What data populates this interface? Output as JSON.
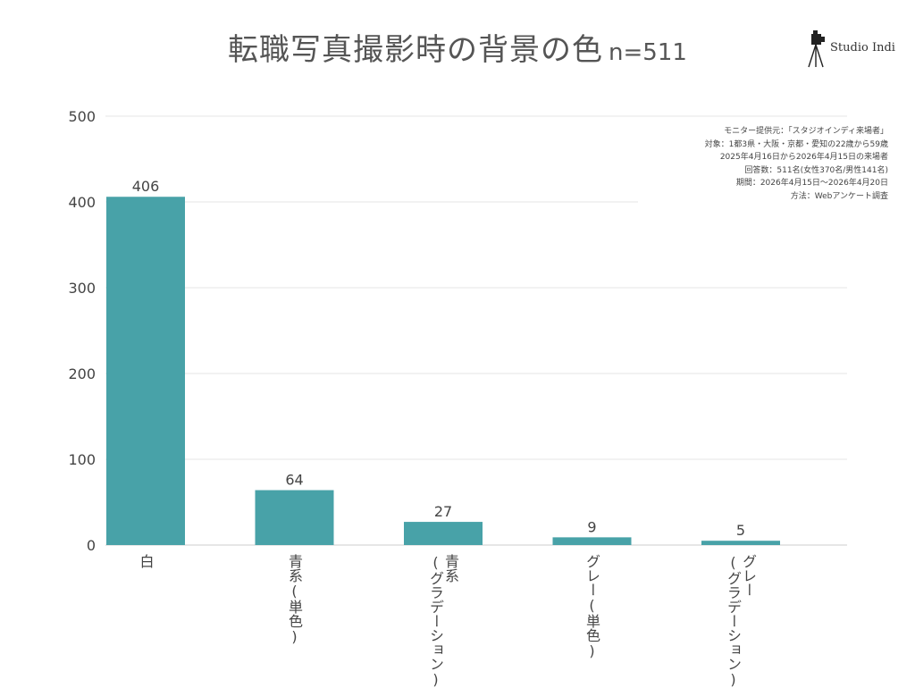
{
  "header": {
    "title": "転職写真撮影時の背景の色",
    "sample": "n=511",
    "logo_text": "Studio Indi",
    "logo_icon": "camera-tripod-icon"
  },
  "notes": [
    "モニター提供元：「スタジオインディ来場者」",
    "対象：1都3県・大阪・京都・愛知の22歳から59歳",
    "2025年4月16日から2026年4月15日の来場者",
    "回答数：511名(女性370名/男性141名)",
    "期間：2026年4月15日〜2026年4月20日",
    "方法：Webアンケート調査"
  ],
  "chart_data": {
    "type": "bar",
    "categories": [
      {
        "main": "白",
        "sub": ""
      },
      {
        "main": "青系(単色)",
        "sub": ""
      },
      {
        "main": "青系",
        "sub": "(グラデーション)"
      },
      {
        "main": "グレー(単色)",
        "sub": ""
      },
      {
        "main": "グレー",
        "sub": "(グラデーション)"
      }
    ],
    "values": [
      406,
      64,
      27,
      9,
      5
    ],
    "ylim": [
      0,
      500
    ],
    "yticks": [
      "0",
      "100",
      "200",
      "300",
      "400",
      "500"
    ],
    "grid": true,
    "bar_color": "#48a2a8",
    "data_labels": true
  }
}
